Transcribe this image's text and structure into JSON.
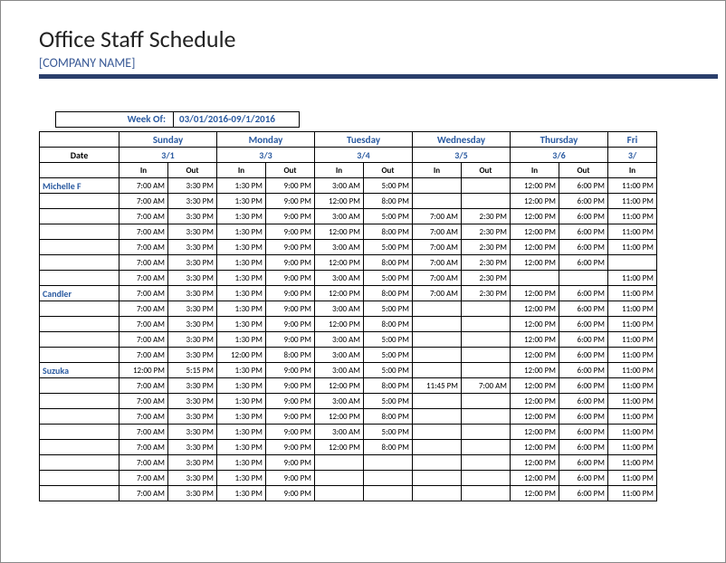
{
  "title": "Office Staff Schedule",
  "company": "[COMPANY NAME]",
  "week_label": "Week Of:",
  "week_value": "03/01/2016-09/1/2016",
  "colors": {
    "accent": "#2a5aa0",
    "rule": "#2a3f6b",
    "border": "#000000",
    "text": "#222222",
    "background": "#ffffff"
  },
  "labels": {
    "date": "Date",
    "in": "In",
    "out": "Out"
  },
  "days": [
    {
      "name": "Sunday",
      "date": "3/1"
    },
    {
      "name": "Monday",
      "date": "3/3"
    },
    {
      "name": "Tuesday",
      "date": "3/4"
    },
    {
      "name": "Wednesday",
      "date": "3/5"
    },
    {
      "name": "Thursday",
      "date": "3/6"
    },
    {
      "name": "Fri",
      "date": "3/"
    }
  ],
  "rows": [
    {
      "name": "Michelle F",
      "cells": [
        "7:00 AM",
        "3:30 PM",
        "1:30 PM",
        "9:00 PM",
        "3:00 AM",
        "5:00 PM",
        "",
        "",
        "12:00 PM",
        "6:00 PM",
        "11:00 PM"
      ]
    },
    {
      "name": "",
      "cells": [
        "7:00 AM",
        "3:30 PM",
        "1:30 PM",
        "9:00 PM",
        "12:00 PM",
        "8:00 PM",
        "",
        "",
        "12:00 PM",
        "6:00 PM",
        "11:00 PM"
      ]
    },
    {
      "name": "",
      "cells": [
        "7:00 AM",
        "3:30 PM",
        "1:30 PM",
        "9:00 PM",
        "3:00 AM",
        "5:00 PM",
        "7:00 AM",
        "2:30 PM",
        "12:00 PM",
        "6:00 PM",
        "11:00 PM"
      ]
    },
    {
      "name": "",
      "cells": [
        "7:00 AM",
        "3:30 PM",
        "1:30 PM",
        "9:00 PM",
        "12:00 PM",
        "8:00 PM",
        "7:00 AM",
        "2:30 PM",
        "12:00 PM",
        "6:00 PM",
        "11:00 PM"
      ]
    },
    {
      "name": "",
      "cells": [
        "7:00 AM",
        "3:30 PM",
        "1:30 PM",
        "9:00 PM",
        "3:00 AM",
        "5:00 PM",
        "7:00 AM",
        "2:30 PM",
        "12:00 PM",
        "6:00 PM",
        "11:00 PM"
      ]
    },
    {
      "name": "",
      "cells": [
        "7:00 AM",
        "3:30 PM",
        "1:30 PM",
        "9:00 PM",
        "12:00 PM",
        "8:00 PM",
        "7:00 AM",
        "2:30 PM",
        "12:00 PM",
        "6:00 PM",
        ""
      ]
    },
    {
      "name": "",
      "cells": [
        "7:00 AM",
        "3:30 PM",
        "1:30 PM",
        "9:00 PM",
        "3:00 AM",
        "5:00 PM",
        "7:00 AM",
        "2:30 PM",
        "",
        "",
        "11:00 PM"
      ]
    },
    {
      "name": "Candler",
      "cells": [
        "7:00 AM",
        "3:30 PM",
        "1:30 PM",
        "9:00 PM",
        "12:00 PM",
        "8:00 PM",
        "7:00 AM",
        "2:30 PM",
        "12:00 PM",
        "6:00 PM",
        "11:00 PM"
      ]
    },
    {
      "name": "",
      "cells": [
        "7:00 AM",
        "3:30 PM",
        "1:30 PM",
        "9:00 PM",
        "3:00 AM",
        "5:00 PM",
        "",
        "",
        "12:00 PM",
        "6:00 PM",
        "11:00 PM"
      ]
    },
    {
      "name": "",
      "cells": [
        "7:00 AM",
        "3:30 PM",
        "1:30 PM",
        "9:00 PM",
        "12:00 PM",
        "8:00 PM",
        "",
        "",
        "12:00 PM",
        "6:00 PM",
        "11:00 PM"
      ]
    },
    {
      "name": "",
      "cells": [
        "7:00 AM",
        "3:30 PM",
        "1:30 PM",
        "9:00 PM",
        "3:00 AM",
        "5:00 PM",
        "",
        "",
        "12:00 PM",
        "6:00 PM",
        "11:00 PM"
      ]
    },
    {
      "name": "",
      "cells": [
        "7:00 AM",
        "3:30 PM",
        "12:00 PM",
        "8:00 PM",
        "3:00 AM",
        "5:00 PM",
        "",
        "",
        "12:00 PM",
        "6:00 PM",
        "11:00 PM"
      ]
    },
    {
      "name": "Suzuka",
      "cells": [
        "12:00 PM",
        "5:15 PM",
        "1:30 PM",
        "9:00 PM",
        "3:00 AM",
        "5:00 PM",
        "",
        "",
        "12:00 PM",
        "6:00 PM",
        "11:00 PM"
      ]
    },
    {
      "name": "",
      "cells": [
        "7:00 AM",
        "3:30 PM",
        "1:30 PM",
        "9:00 PM",
        "12:00 PM",
        "8:00 PM",
        "11:45 PM",
        "7:00 AM",
        "12:00 PM",
        "6:00 PM",
        "11:00 PM"
      ]
    },
    {
      "name": "",
      "cells": [
        "7:00 AM",
        "3:30 PM",
        "1:30 PM",
        "9:00 PM",
        "3:00 AM",
        "5:00 PM",
        "",
        "",
        "12:00 PM",
        "6:00 PM",
        "11:00 PM"
      ]
    },
    {
      "name": "",
      "cells": [
        "7:00 AM",
        "3:30 PM",
        "1:30 PM",
        "9:00 PM",
        "12:00 PM",
        "8:00 PM",
        "",
        "",
        "12:00 PM",
        "6:00 PM",
        "11:00 PM"
      ]
    },
    {
      "name": "",
      "cells": [
        "7:00 AM",
        "3:30 PM",
        "1:30 PM",
        "9:00 PM",
        "3:00 AM",
        "5:00 PM",
        "",
        "",
        "12:00 PM",
        "6:00 PM",
        "11:00 PM"
      ]
    },
    {
      "name": "",
      "cells": [
        "7:00 AM",
        "3:30 PM",
        "1:30 PM",
        "9:00 PM",
        "12:00 PM",
        "8:00 PM",
        "",
        "",
        "12:00 PM",
        "6:00 PM",
        "11:00 PM"
      ]
    },
    {
      "name": "",
      "cells": [
        "7:00 AM",
        "3:30 PM",
        "1:30 PM",
        "9:00 PM",
        "",
        "",
        "",
        "",
        "12:00 PM",
        "6:00 PM",
        "11:00 PM"
      ]
    },
    {
      "name": "",
      "cells": [
        "7:00 AM",
        "3:30 PM",
        "1:30 PM",
        "9:00 PM",
        "",
        "",
        "",
        "",
        "12:00 PM",
        "6:00 PM",
        "11:00 PM"
      ]
    },
    {
      "name": "",
      "cells": [
        "7:00 AM",
        "3:30 PM",
        "1:30 PM",
        "9:00 PM",
        "",
        "",
        "",
        "",
        "12:00 PM",
        "6:00 PM",
        "11:00 PM"
      ]
    }
  ]
}
